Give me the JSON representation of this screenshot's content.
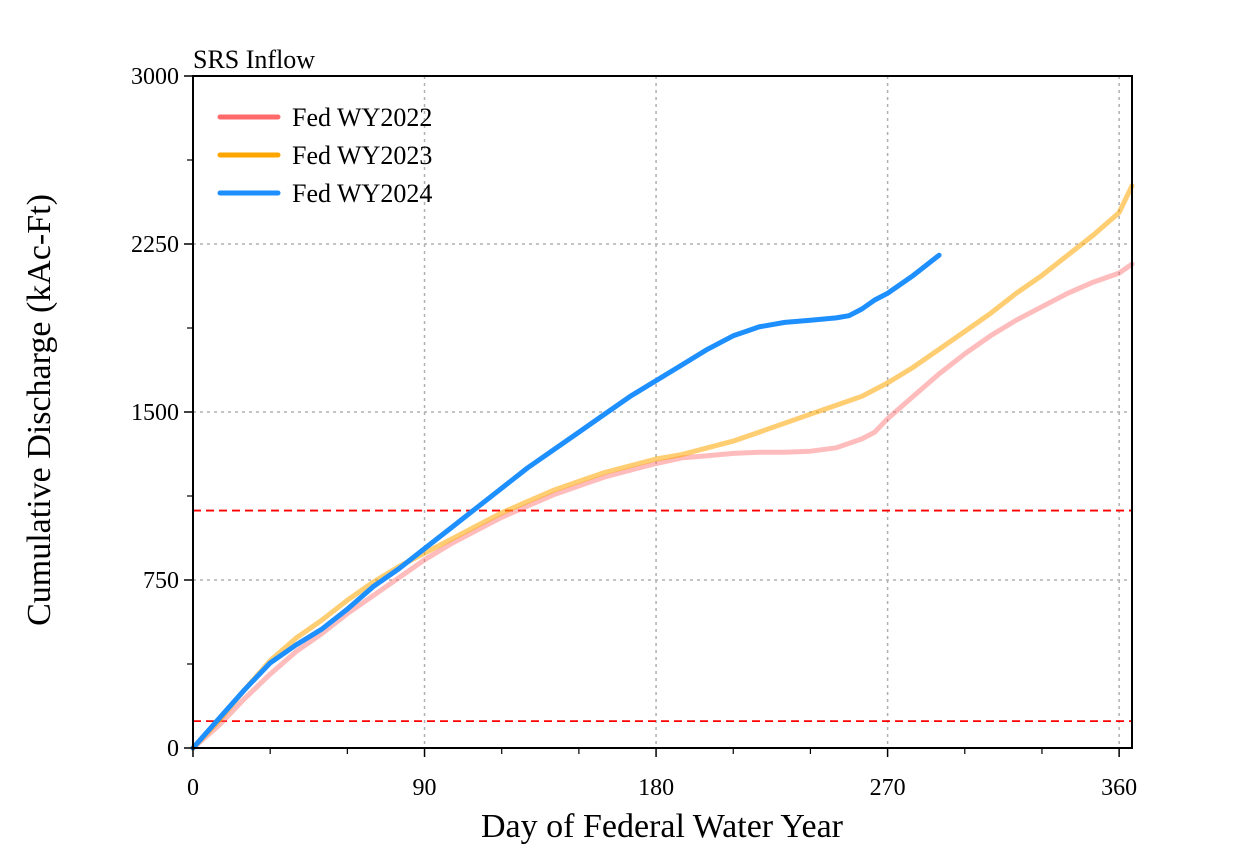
{
  "chart_data": {
    "type": "line",
    "title": "SRS Inflow",
    "xlabel": "Day of Federal Water Year",
    "ylabel": "Cumulative Discharge (kAc-Ft)",
    "xlim": [
      0,
      365
    ],
    "ylim": [
      0,
      3000
    ],
    "x_ticks": [
      0,
      90,
      180,
      270,
      360
    ],
    "y_ticks": [
      0,
      750,
      1500,
      2250,
      3000
    ],
    "x_minor_step": 30,
    "y_minor_step": 375,
    "grid": true,
    "legend_position": "top-left",
    "series": [
      {
        "name": "Fed WY2022",
        "color": "#ff6b6b",
        "x": [
          0,
          10,
          20,
          30,
          40,
          50,
          60,
          70,
          80,
          90,
          100,
          110,
          120,
          130,
          140,
          150,
          160,
          170,
          180,
          190,
          200,
          210,
          220,
          230,
          240,
          250,
          260,
          265,
          270,
          280,
          290,
          300,
          310,
          320,
          330,
          340,
          350,
          360,
          365
        ],
        "y": [
          0,
          100,
          220,
          330,
          430,
          510,
          600,
          680,
          760,
          840,
          910,
          970,
          1030,
          1080,
          1130,
          1170,
          1210,
          1240,
          1270,
          1295,
          1305,
          1315,
          1320,
          1320,
          1325,
          1340,
          1380,
          1410,
          1470,
          1570,
          1670,
          1760,
          1840,
          1910,
          1970,
          2030,
          2080,
          2120,
          2160
        ]
      },
      {
        "name": "Fed WY2023",
        "color": "#ffa500",
        "x": [
          0,
          10,
          20,
          30,
          40,
          50,
          60,
          70,
          80,
          90,
          100,
          110,
          120,
          130,
          140,
          150,
          160,
          170,
          180,
          190,
          200,
          210,
          220,
          230,
          240,
          250,
          260,
          270,
          280,
          290,
          300,
          310,
          320,
          330,
          340,
          350,
          360,
          365
        ],
        "y": [
          0,
          120,
          260,
          390,
          490,
          570,
          660,
          740,
          810,
          870,
          930,
          990,
          1050,
          1100,
          1150,
          1190,
          1230,
          1260,
          1290,
          1310,
          1340,
          1370,
          1410,
          1450,
          1490,
          1530,
          1570,
          1630,
          1700,
          1780,
          1860,
          1940,
          2030,
          2110,
          2200,
          2290,
          2390,
          2510
        ]
      },
      {
        "name": "Fed WY2024",
        "color": "#1e8fff",
        "x": [
          0,
          10,
          20,
          30,
          40,
          50,
          60,
          70,
          80,
          90,
          100,
          110,
          120,
          130,
          140,
          150,
          160,
          170,
          180,
          190,
          200,
          210,
          215,
          220,
          230,
          240,
          250,
          255,
          260,
          265,
          270,
          280,
          290
        ],
        "y": [
          0,
          130,
          260,
          380,
          460,
          530,
          620,
          720,
          800,
          890,
          980,
          1070,
          1160,
          1250,
          1330,
          1410,
          1490,
          1570,
          1640,
          1710,
          1780,
          1840,
          1860,
          1880,
          1900,
          1910,
          1920,
          1930,
          1960,
          2000,
          2030,
          2110,
          2200
        ]
      }
    ],
    "reference_lines": [
      {
        "y": 1060,
        "color": "#ff0000",
        "style": "dashed"
      },
      {
        "y": 120,
        "color": "#ff0000",
        "style": "dashed"
      }
    ]
  }
}
